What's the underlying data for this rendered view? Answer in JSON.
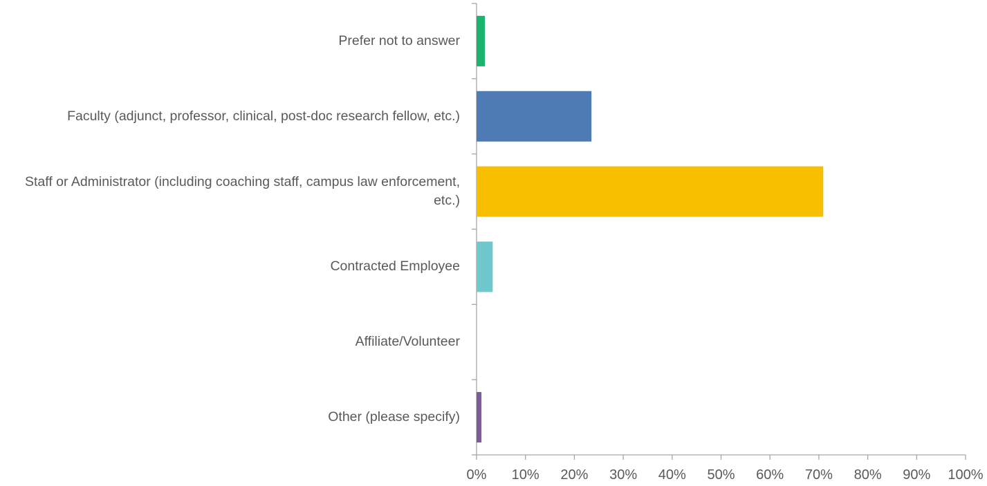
{
  "chart_data": {
    "type": "barh",
    "categories": [
      "Prefer not to answer",
      "Faculty (adjunct, professor, clinical, post-doc research fellow, etc.)",
      "Staff or Administrator (including coaching staff, campus law enforcement, etc.)",
      "Contracted Employee",
      "Affiliate/Volunteer",
      "Other (please specify)"
    ],
    "values": [
      1.7,
      23.5,
      70.9,
      3.3,
      0,
      1.0
    ],
    "colors": [
      "#1ab46e",
      "#4e7bb4",
      "#f8be00",
      "#6fc8cb",
      "#a5a5a5",
      "#7b5b99"
    ],
    "xlim": [
      0,
      100
    ],
    "xticks": [
      {
        "value": 0,
        "label": "0%"
      },
      {
        "value": 10,
        "label": "10%"
      },
      {
        "value": 20,
        "label": "20%"
      },
      {
        "value": 30,
        "label": "30%"
      },
      {
        "value": 40,
        "label": "40%"
      },
      {
        "value": 50,
        "label": "50%"
      },
      {
        "value": 60,
        "label": "60%"
      },
      {
        "value": 70,
        "label": "70%"
      },
      {
        "value": 80,
        "label": "80%"
      },
      {
        "value": 90,
        "label": "90%"
      },
      {
        "value": 100,
        "label": "100%"
      }
    ]
  }
}
